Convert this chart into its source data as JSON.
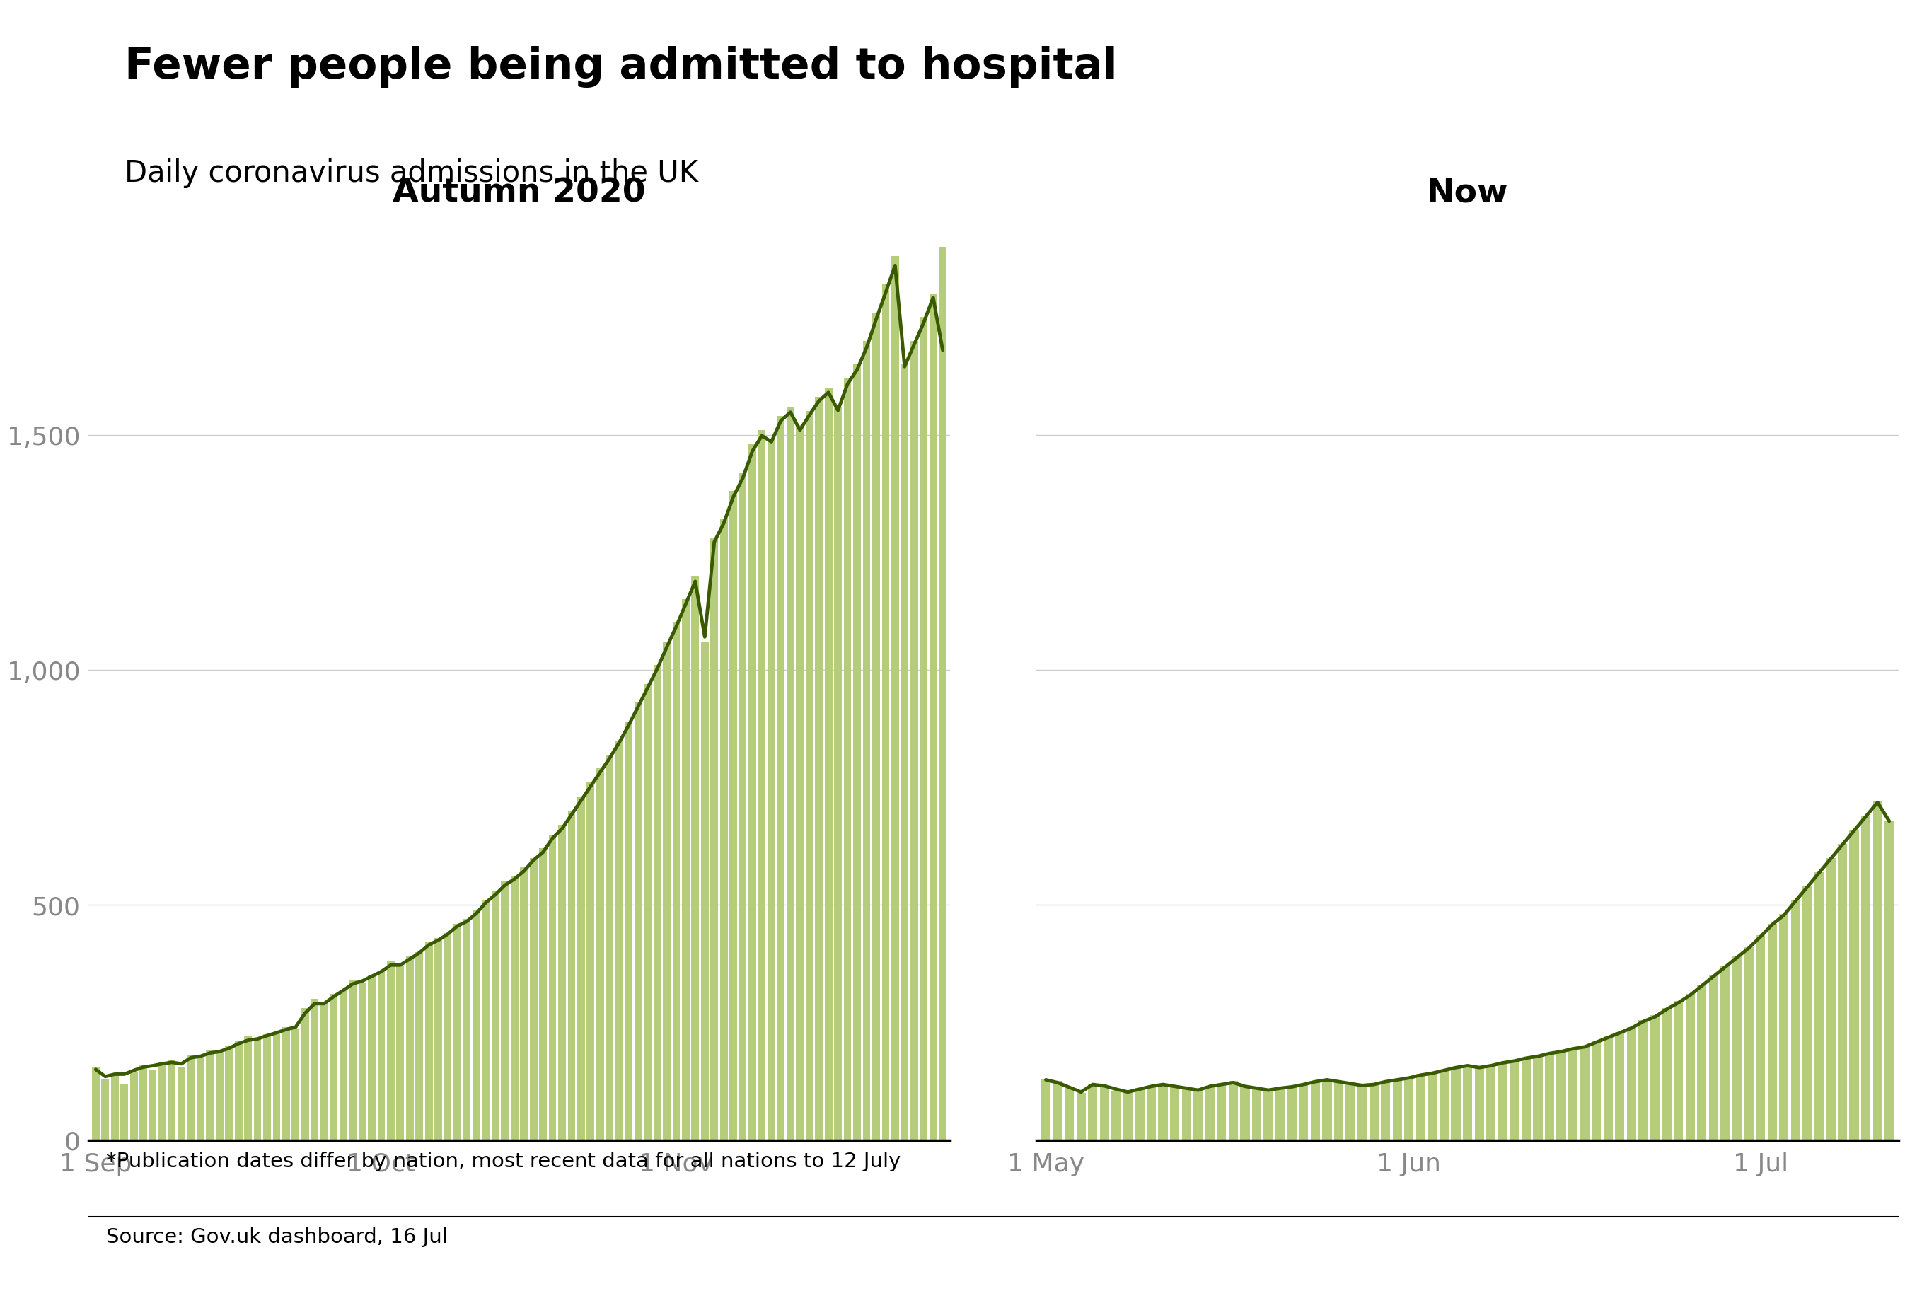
{
  "title": "Fewer people being admitted to hospital",
  "subtitle": "Daily coronavirus admissions in the UK",
  "footnote": "*Publication dates differ by nation, most recent data for all nations to 12 July",
  "source": "Source: Gov.uk dashboard, 16 Jul",
  "left_panel_title": "Autumn 2020",
  "right_panel_title": "Now",
  "bar_color_light": "#b5cc7a",
  "line_color": "#3a5a02",
  "axis_label_color": "#888888",
  "title_color": "#000000",
  "bg_color": "#ffffff",
  "grid_color": "#cccccc",
  "ylim": [
    0,
    1950
  ],
  "yticks": [
    0,
    500,
    1000,
    1500
  ],
  "left_xtick_pos": [
    0,
    30,
    61
  ],
  "left_xticks": [
    "1 Sep",
    "1 Oct",
    "1 Nov"
  ],
  "right_xtick_pos": [
    0,
    31,
    61
  ],
  "right_xticks": [
    "1 May",
    "1 Jun",
    "1 Jul"
  ],
  "left_bars": [
    155,
    130,
    140,
    120,
    145,
    160,
    150,
    165,
    170,
    155,
    180,
    175,
    190,
    185,
    200,
    210,
    220,
    215,
    225,
    230,
    240,
    235,
    280,
    300,
    290,
    310,
    320,
    340,
    335,
    350,
    360,
    380,
    370,
    390,
    400,
    420,
    430,
    440,
    460,
    470,
    490,
    510,
    530,
    550,
    560,
    580,
    600,
    620,
    650,
    670,
    700,
    730,
    760,
    790,
    820,
    850,
    890,
    930,
    970,
    1010,
    1060,
    1100,
    1150,
    1200,
    1060,
    1280,
    1320,
    1380,
    1420,
    1480,
    1510,
    1490,
    1540,
    1560,
    1520,
    1550,
    1580,
    1600,
    1560,
    1620,
    1650,
    1700,
    1760,
    1820,
    1880,
    1650,
    1700,
    1750,
    1800,
    1900
  ],
  "left_line": [
    150,
    135,
    140,
    140,
    148,
    155,
    158,
    162,
    165,
    162,
    175,
    178,
    185,
    188,
    195,
    205,
    212,
    215,
    222,
    228,
    235,
    240,
    270,
    290,
    290,
    305,
    318,
    332,
    338,
    348,
    358,
    372,
    372,
    385,
    398,
    415,
    425,
    438,
    455,
    465,
    482,
    505,
    522,
    542,
    555,
    572,
    595,
    612,
    642,
    662,
    692,
    722,
    752,
    782,
    812,
    845,
    882,
    922,
    962,
    1002,
    1048,
    1092,
    1140,
    1188,
    1070,
    1272,
    1312,
    1368,
    1408,
    1465,
    1498,
    1485,
    1530,
    1548,
    1510,
    1542,
    1572,
    1590,
    1552,
    1608,
    1638,
    1685,
    1745,
    1802,
    1860,
    1645,
    1692,
    1738,
    1792,
    1680
  ],
  "right_bars": [
    130,
    125,
    110,
    100,
    120,
    115,
    105,
    100,
    110,
    115,
    120,
    115,
    110,
    105,
    115,
    120,
    125,
    115,
    110,
    105,
    110,
    115,
    120,
    125,
    130,
    125,
    120,
    115,
    120,
    125,
    130,
    135,
    140,
    145,
    150,
    155,
    160,
    155,
    160,
    165,
    170,
    175,
    180,
    185,
    190,
    195,
    200,
    210,
    220,
    230,
    240,
    255,
    265,
    280,
    295,
    310,
    330,
    350,
    370,
    390,
    410,
    435,
    460,
    480,
    510,
    540,
    570,
    600,
    630,
    660,
    690,
    720,
    680
  ],
  "right_line": [
    128,
    122,
    112,
    102,
    118,
    115,
    108,
    102,
    108,
    114,
    118,
    114,
    110,
    106,
    114,
    118,
    122,
    114,
    110,
    106,
    110,
    113,
    118,
    124,
    128,
    124,
    120,
    116,
    118,
    124,
    128,
    132,
    138,
    142,
    148,
    154,
    158,
    154,
    158,
    164,
    168,
    174,
    178,
    184,
    188,
    194,
    198,
    208,
    218,
    228,
    238,
    252,
    262,
    278,
    292,
    308,
    328,
    348,
    368,
    388,
    408,
    432,
    458,
    478,
    508,
    538,
    568,
    598,
    628,
    658,
    688,
    718,
    678
  ]
}
